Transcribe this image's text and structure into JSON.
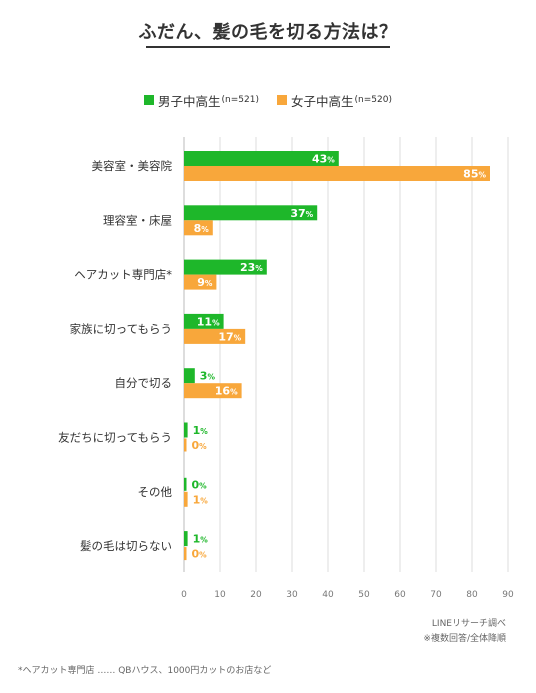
{
  "title": "ふだん、髪の毛を切る方法は？",
  "chart_data": {
    "type": "bar",
    "orientation": "horizontal",
    "categories": [
      "美容室・美容院",
      "理容室・床屋",
      "ヘアカット専門店*",
      "家族に切ってもらう",
      "自分で切る",
      "友だちに切ってもらう",
      "その他",
      "髪の毛は切らない"
    ],
    "series": [
      {
        "name": "男子中高生",
        "n_label": "(n=521)",
        "color": "#1eb72a",
        "values": [
          43,
          37,
          23,
          11,
          3,
          1,
          0,
          1
        ]
      },
      {
        "name": "女子中高生",
        "n_label": "(n=520)",
        "color": "#f8a73b",
        "values": [
          85,
          8,
          9,
          17,
          16,
          0,
          1,
          0
        ]
      }
    ],
    "xlim": [
      0,
      90
    ],
    "xticks": [
      0,
      10,
      20,
      30,
      40,
      50,
      60,
      70,
      80,
      90
    ],
    "value_suffix": "%",
    "legend": "top-center",
    "grid": true
  },
  "source": {
    "line1": "LINEリサーチ調べ",
    "line2": "※複数回答/全体降順"
  },
  "footnote": "*ヘアカット専門店 ……  QBハウス、1000円カットのお店など"
}
